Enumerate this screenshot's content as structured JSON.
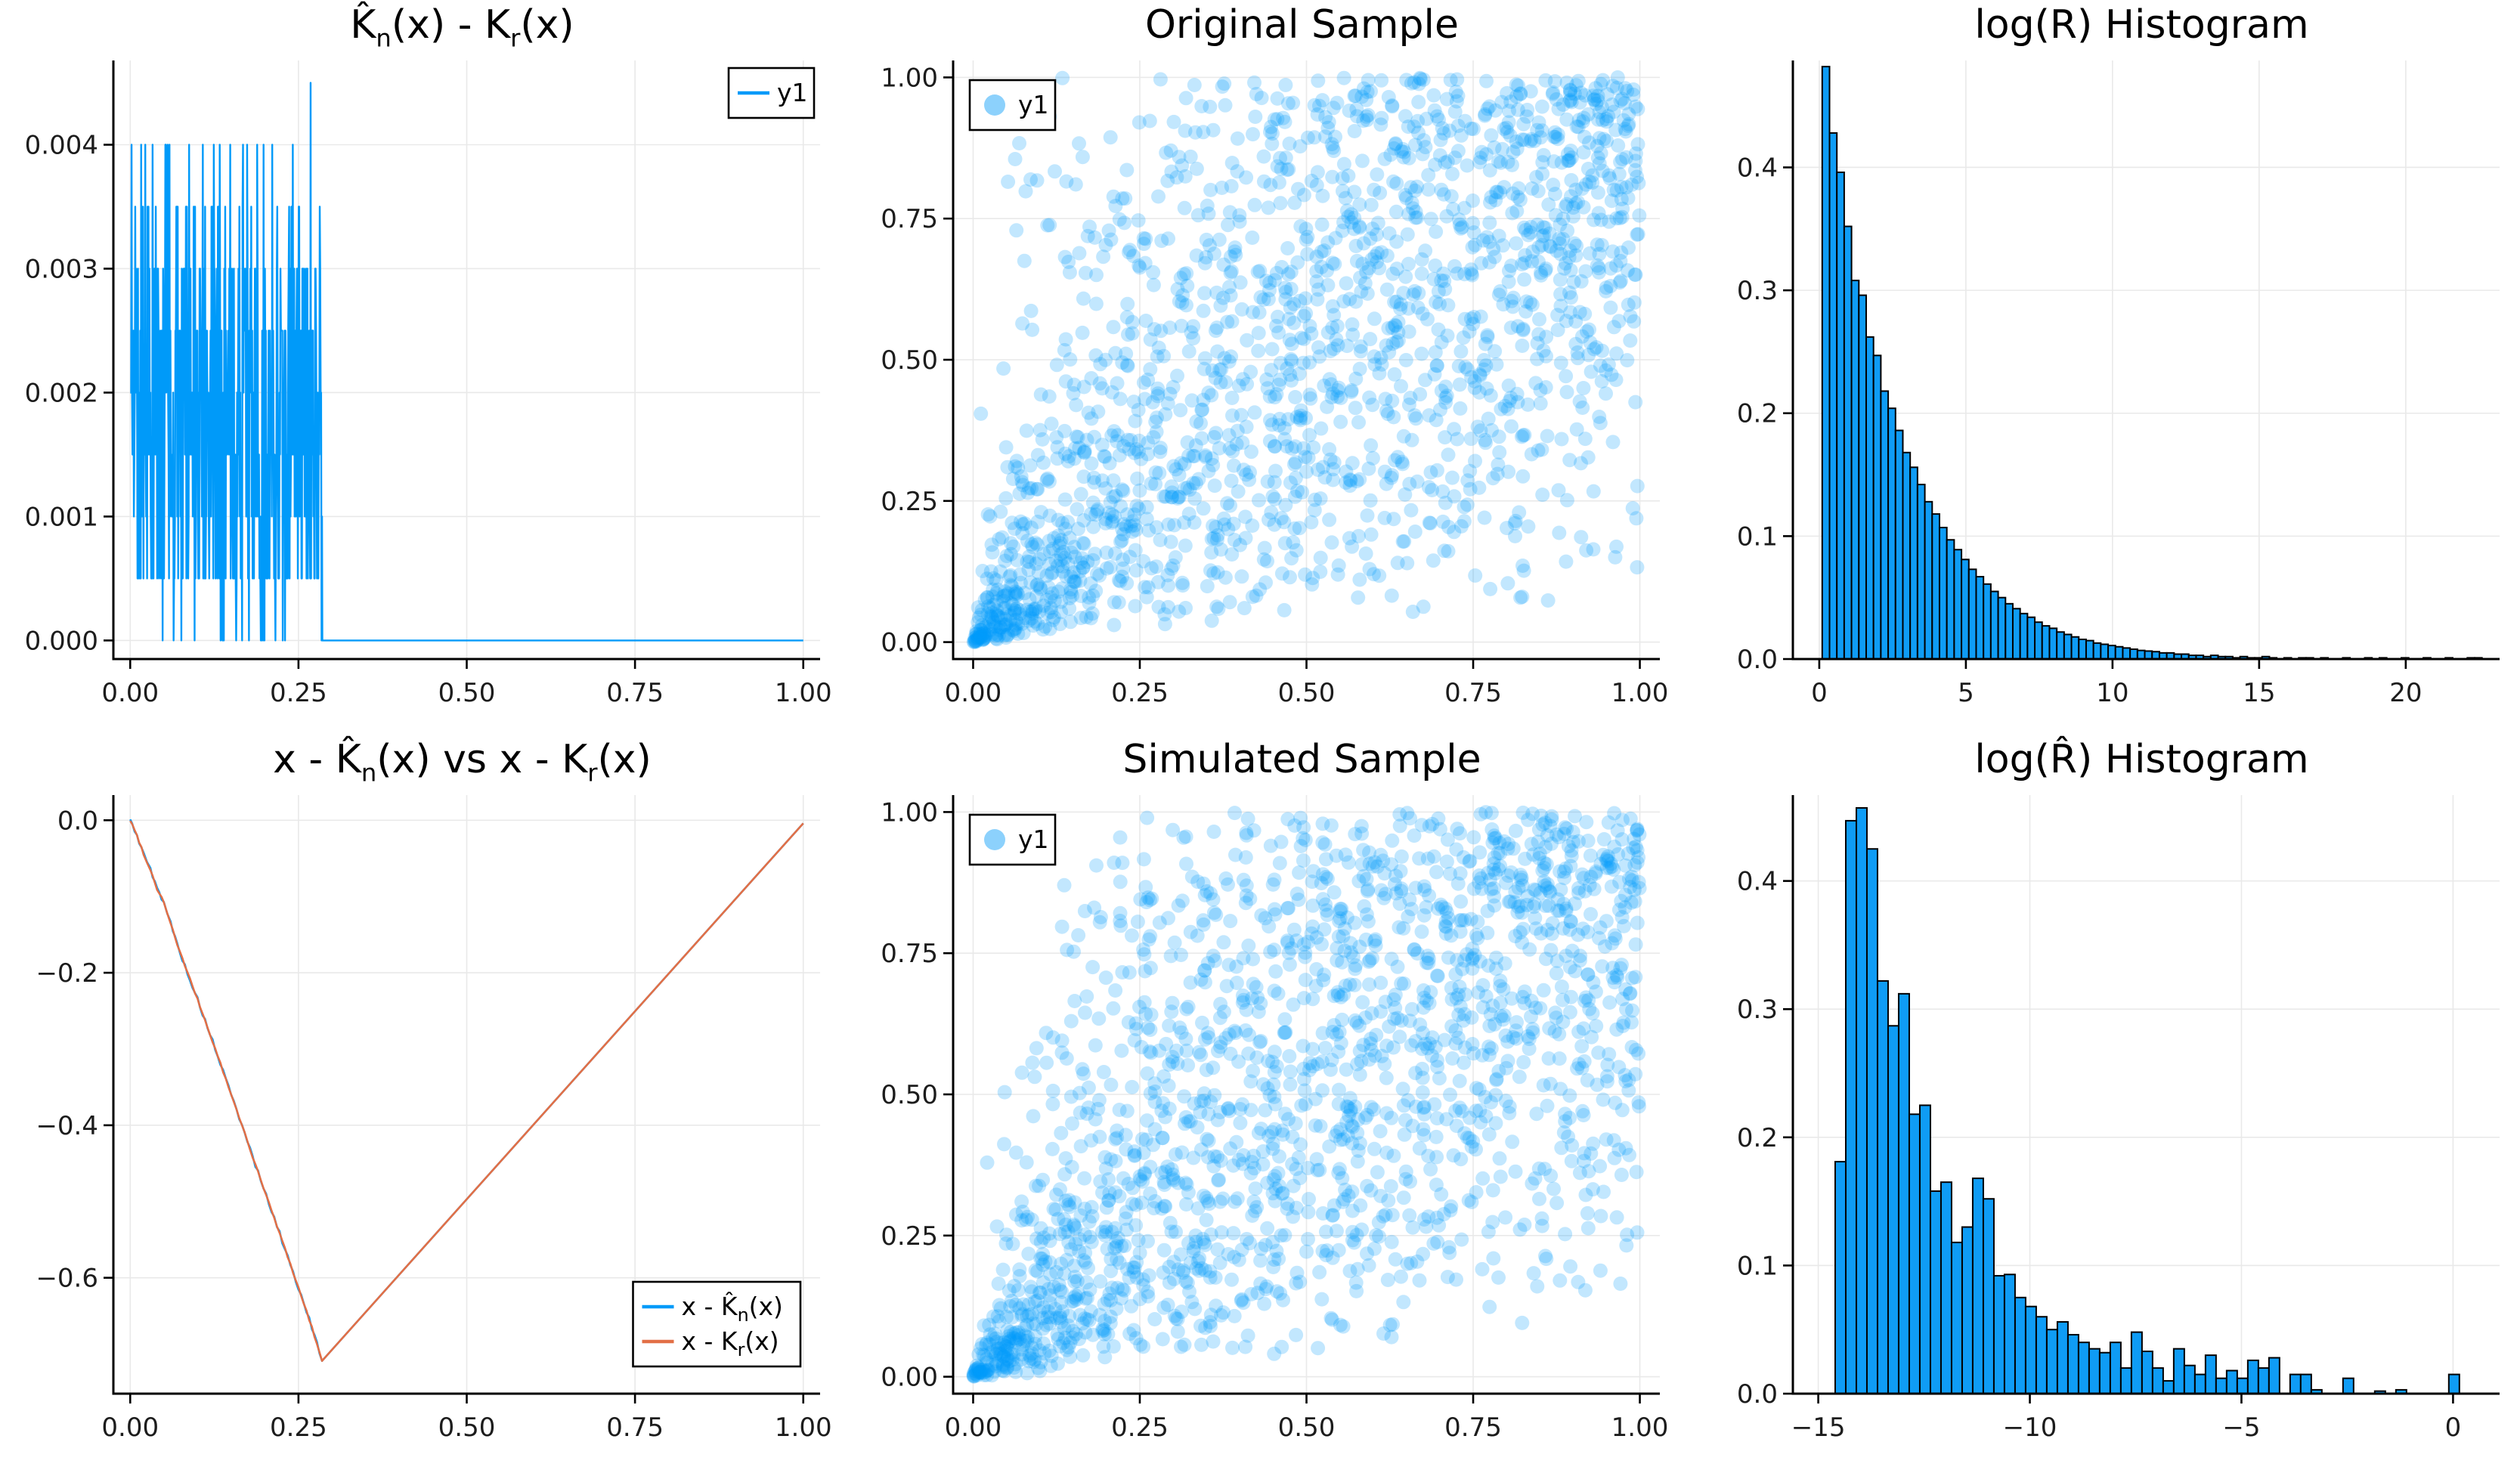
{
  "style": {
    "background": "#ffffff",
    "series_blue": "#009af9",
    "series_red": "#e26f46",
    "hist_fill": "#0f9cf5",
    "hist_stroke": "#000000",
    "scatter_fill": "rgba(0,154,249,0.24)",
    "legend_marker_fill": "rgba(0,154,249,0.45)",
    "grid_color": "#e9e9e9",
    "axis_color": "#000000",
    "tick_label_color": "#1c1c1c"
  },
  "chart_data": [
    {
      "id": "kn-kr-diff",
      "type": "noisy_line",
      "title": "K̂_n(x) - K_r(x)",
      "xlim": [
        -0.025,
        1.025
      ],
      "ylim": [
        -0.00015,
        0.00468
      ],
      "xticks": {
        "values": [
          0,
          0.25,
          0.5,
          0.75,
          1
        ],
        "labels": [
          "0.00",
          "0.25",
          "0.50",
          "0.75",
          "1.00"
        ]
      },
      "yticks": {
        "values": [
          0,
          0.001,
          0.002,
          0.003,
          0.004
        ],
        "labels": [
          "0.000",
          "0.001",
          "0.002",
          "0.003",
          "0.004"
        ]
      },
      "grid": true,
      "legend": {
        "pos": "topright",
        "entries": [
          {
            "label": "y1",
            "marker": "line",
            "color": "#009af9"
          }
        ]
      },
      "series": {
        "color": "#009af9",
        "x_start": 0,
        "x_noise_end": 0.285,
        "x_end": 1.0,
        "n_points": 420,
        "level_step": 0.0005,
        "level_min": 0,
        "level_max": 8,
        "peak": {
          "x": 0.268,
          "y": 0.0045
        },
        "flat_value": 0,
        "seed": 11
      }
    },
    {
      "id": "original-sample",
      "type": "scatter",
      "title": "Original Sample",
      "xlim": [
        -0.03,
        1.03
      ],
      "ylim": [
        -0.03,
        1.03
      ],
      "xticks": {
        "values": [
          0,
          0.25,
          0.5,
          0.75,
          1
        ],
        "labels": [
          "0.00",
          "0.25",
          "0.50",
          "0.75",
          "1.00"
        ]
      },
      "yticks": {
        "values": [
          0,
          0.25,
          0.5,
          0.75,
          1
        ],
        "labels": [
          "0.00",
          "0.25",
          "0.50",
          "0.75",
          "1.00"
        ]
      },
      "grid": true,
      "legend": {
        "pos": "topleft",
        "entries": [
          {
            "label": "y1",
            "marker": "circle",
            "color": "rgba(0,154,249,0.45)"
          }
        ]
      },
      "series": {
        "fill": "rgba(0,154,249,0.24)",
        "marker_radius": 9.5,
        "n_points": 1800,
        "model": "clayton_copula",
        "theta": 1.5,
        "range": [
          0,
          1
        ],
        "seed": 23
      }
    },
    {
      "id": "logR-hist",
      "type": "hist",
      "title": "log(R) Histogram",
      "xlim": [
        -0.9,
        23.2
      ],
      "ylim": [
        0,
        0.487
      ],
      "xticks": {
        "values": [
          0,
          5,
          10,
          15,
          20
        ],
        "labels": [
          "0",
          "5",
          "10",
          "15",
          "20"
        ]
      },
      "yticks": {
        "values": [
          0,
          0.1,
          0.2,
          0.3,
          0.4
        ],
        "labels": [
          "0.0",
          "0.1",
          "0.2",
          "0.3",
          "0.4"
        ]
      },
      "grid": true,
      "legend": null,
      "series": {
        "bin_start": 0.1,
        "bin_width": 0.25,
        "heights": [
          0.482,
          0.428,
          0.396,
          0.352,
          0.308,
          0.296,
          0.262,
          0.247,
          0.218,
          0.204,
          0.186,
          0.168,
          0.156,
          0.142,
          0.128,
          0.118,
          0.107,
          0.097,
          0.089,
          0.081,
          0.073,
          0.067,
          0.061,
          0.055,
          0.05,
          0.045,
          0.041,
          0.037,
          0.034,
          0.03,
          0.027,
          0.025,
          0.022,
          0.02,
          0.018,
          0.016,
          0.015,
          0.013,
          0.012,
          0.011,
          0.01,
          0.009,
          0.008,
          0.007,
          0.0065,
          0.006,
          0.005,
          0.005,
          0.004,
          0.004,
          0.003,
          0.003,
          0.002,
          0.003,
          0.002,
          0.002,
          0.001,
          0.002,
          0.001,
          0.001,
          0.002,
          0.001,
          0,
          0.001,
          0,
          0.001,
          0.001,
          0,
          0.001,
          0,
          0,
          0.001,
          0,
          0,
          0.001,
          0,
          0.001,
          0,
          0,
          0.001,
          0,
          0,
          0.001,
          0,
          0,
          0.001,
          0,
          0,
          0.001,
          0.001
        ]
      }
    },
    {
      "id": "x-minus-k",
      "type": "lines",
      "title": "x - K̂_n(x) vs x - K_r(x)",
      "xlim": [
        -0.025,
        1.025
      ],
      "ylim": [
        -0.752,
        0.033
      ],
      "xticks": {
        "values": [
          0,
          0.25,
          0.5,
          0.75,
          1
        ],
        "labels": [
          "0.00",
          "0.25",
          "0.50",
          "0.75",
          "1.00"
        ]
      },
      "yticks": {
        "values": [
          0,
          -0.2,
          -0.4,
          -0.6
        ],
        "labels": [
          "0.0",
          "−0.2",
          "−0.4",
          "−0.6"
        ]
      },
      "grid": true,
      "legend": {
        "pos": "bottomright",
        "entries": [
          {
            "label": "x - K̂_n(x)",
            "marker": "line",
            "color": "#009af9"
          },
          {
            "label": "x - K_r(x)",
            "marker": "line",
            "color": "#e26f46"
          }
        ]
      },
      "series": {
        "descent_points": [
          [
            0,
            0
          ],
          [
            0.003,
            -0.006
          ],
          [
            0.01,
            -0.02
          ],
          [
            0.02,
            -0.044
          ],
          [
            0.03,
            -0.065
          ],
          [
            0.04,
            -0.09
          ],
          [
            0.05,
            -0.107
          ],
          [
            0.06,
            -0.135
          ],
          [
            0.07,
            -0.163
          ],
          [
            0.085,
            -0.2
          ],
          [
            0.1,
            -0.235
          ],
          [
            0.115,
            -0.272
          ],
          [
            0.13,
            -0.309
          ],
          [
            0.15,
            -0.36
          ],
          [
            0.17,
            -0.41
          ],
          [
            0.19,
            -0.462
          ],
          [
            0.21,
            -0.512
          ],
          [
            0.23,
            -0.562
          ],
          [
            0.25,
            -0.613
          ],
          [
            0.27,
            -0.665
          ],
          [
            0.285,
            -0.709
          ]
        ],
        "rise_end": [
          1.0,
          -0.004
        ],
        "blue": {
          "color": "#009af9",
          "jitter": 0.003,
          "seed": 5
        },
        "red": {
          "color": "#e26f46",
          "jitter": 0.0015,
          "seed": 99
        }
      }
    },
    {
      "id": "simulated-sample",
      "type": "scatter",
      "title": "Simulated Sample",
      "xlim": [
        -0.03,
        1.03
      ],
      "ylim": [
        -0.03,
        1.03
      ],
      "xticks": {
        "values": [
          0,
          0.25,
          0.5,
          0.75,
          1
        ],
        "labels": [
          "0.00",
          "0.25",
          "0.50",
          "0.75",
          "1.00"
        ]
      },
      "yticks": {
        "values": [
          0,
          0.25,
          0.5,
          0.75,
          1
        ],
        "labels": [
          "0.00",
          "0.25",
          "0.50",
          "0.75",
          "1.00"
        ]
      },
      "grid": true,
      "legend": {
        "pos": "topleft",
        "entries": [
          {
            "label": "y1",
            "marker": "circle",
            "color": "rgba(0,154,249,0.45)"
          }
        ]
      },
      "series": {
        "fill": "rgba(0,154,249,0.24)",
        "marker_radius": 9.5,
        "n_points": 1800,
        "model": "clayton_copula",
        "theta": 1.5,
        "range": [
          0,
          1
        ],
        "seed": 57
      }
    },
    {
      "id": "logRhat-hist",
      "type": "hist",
      "title": "log(R̂) Histogram",
      "xlim": [
        -15.6,
        1.1
      ],
      "ylim": [
        0,
        0.467
      ],
      "xticks": {
        "values": [
          -15,
          -10,
          -5,
          0
        ],
        "labels": [
          "−15",
          "−10",
          "−5",
          "0"
        ]
      },
      "yticks": {
        "values": [
          0,
          0.1,
          0.2,
          0.3,
          0.4
        ],
        "labels": [
          "0.0",
          "0.1",
          "0.2",
          "0.3",
          "0.4"
        ]
      },
      "grid": true,
      "legend": null,
      "series": {
        "bin_start": -14.6,
        "bin_width": 0.25,
        "heights": [
          0.181,
          0.447,
          0.457,
          0.425,
          0.322,
          0.287,
          0.312,
          0.218,
          0.225,
          0.158,
          0.165,
          0.118,
          0.13,
          0.168,
          0.152,
          0.092,
          0.093,
          0.075,
          0.068,
          0.06,
          0.05,
          0.056,
          0.046,
          0.04,
          0.035,
          0.032,
          0.04,
          0.02,
          0.048,
          0.033,
          0.02,
          0.01,
          0.035,
          0.022,
          0.015,
          0.03,
          0.012,
          0.018,
          0.012,
          0.026,
          0.02,
          0.028,
          0,
          0.015,
          0.015,
          0.003,
          0,
          0,
          0.012,
          0,
          0,
          0.002,
          0,
          0.003,
          0,
          0,
          0,
          0,
          0.015
        ]
      }
    }
  ]
}
